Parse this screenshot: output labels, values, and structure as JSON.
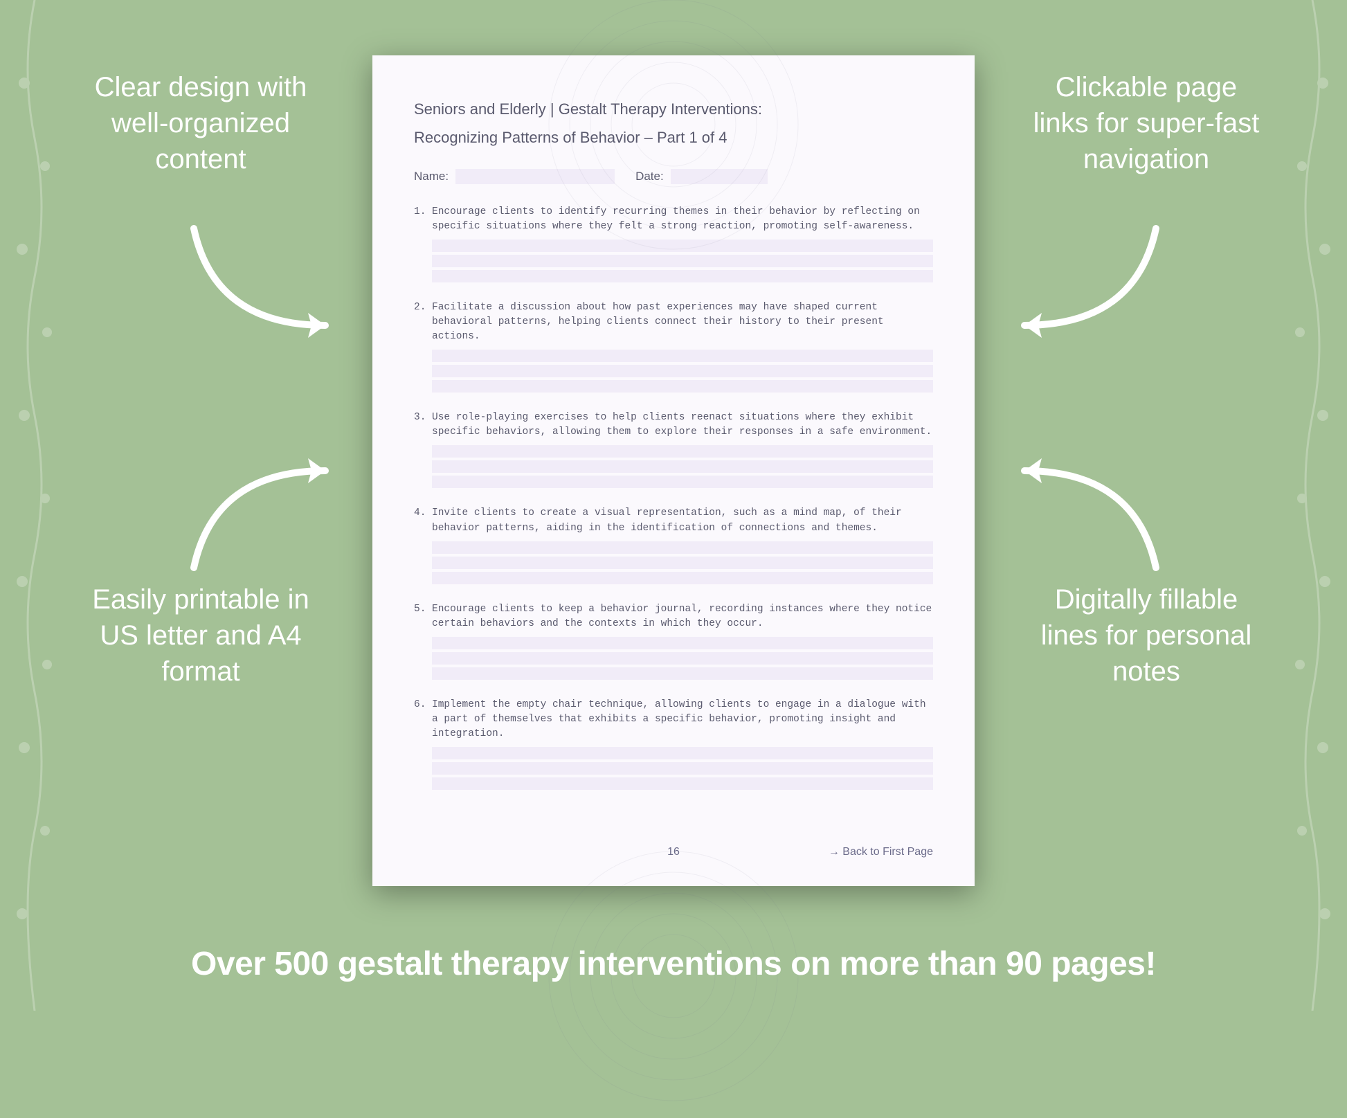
{
  "colors": {
    "background": "#a4c196",
    "callout_text": "#ffffff",
    "arrow_stroke": "#ffffff",
    "doc_background": "#fbf9fd",
    "doc_text": "#5a5a6e",
    "fill_line_bg": "#f1ecf8",
    "mandala_stroke": "#6b6b8a"
  },
  "typography": {
    "callout_fontsize": 40,
    "callout_weight": 300,
    "banner_fontsize": 48,
    "banner_weight": 700,
    "doc_header_fontsize": 22,
    "doc_item_fontsize": 14.5,
    "doc_item_family": "monospace"
  },
  "callouts": {
    "top_left": "Clear design with well-organized content",
    "top_right": "Clickable page links for super-fast navigation",
    "bottom_left": "Easily printable in US letter and A4 format",
    "bottom_right": "Digitally fillable lines for personal notes"
  },
  "banner": "Over 500 gestalt therapy interventions on more than 90 pages!",
  "document": {
    "title_line1": "Seniors and Elderly | Gestalt Therapy Interventions:",
    "title_line2": "Recognizing Patterns of Behavior  – Part 1 of 4",
    "fields": {
      "name_label": "Name:",
      "date_label": "Date:"
    },
    "items": [
      {
        "num": "1.",
        "text": "Encourage clients to identify recurring themes in their behavior by reflecting on specific situations where they felt a strong reaction, promoting self-awareness."
      },
      {
        "num": "2.",
        "text": "Facilitate a discussion about how past experiences may have shaped current behavioral patterns, helping clients connect their history to their present actions."
      },
      {
        "num": "3.",
        "text": "Use role-playing exercises to help clients reenact situations where they exhibit specific behaviors, allowing them to explore their responses in a safe environment."
      },
      {
        "num": "4.",
        "text": "Invite clients to create a visual representation, such as a mind map, of their behavior patterns, aiding in the identification of connections and themes."
      },
      {
        "num": "5.",
        "text": "Encourage clients to keep a behavior journal, recording instances where they notice certain behaviors and the contexts in which they occur."
      },
      {
        "num": "6.",
        "text": "Implement the empty chair technique, allowing clients to engage in a dialogue with a part of themselves that exhibits a specific behavior, promoting insight and integration."
      }
    ],
    "fill_lines_per_item": 3,
    "page_number": "16",
    "back_link": "→ Back to First Page"
  }
}
